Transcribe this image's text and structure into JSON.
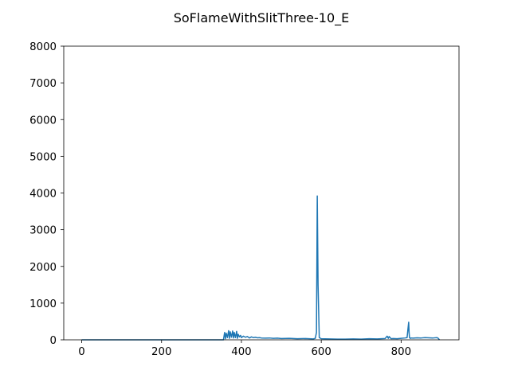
{
  "chart_data": {
    "type": "line",
    "title": "SoFlameWithSlitThree-10_E",
    "xlabel": "",
    "ylabel": "",
    "xlim": [
      -45,
      945
    ],
    "ylim": [
      0,
      8000
    ],
    "xticks": [
      0,
      200,
      400,
      600,
      800
    ],
    "xtick_labels": [
      "0",
      "200",
      "400",
      "600",
      "800"
    ],
    "yticks": [
      0,
      1000,
      2000,
      3000,
      4000,
      5000,
      6000,
      7000,
      8000
    ],
    "ytick_labels": [
      "0",
      "1000",
      "2000",
      "3000",
      "4000",
      "5000",
      "6000",
      "7000",
      "8000"
    ],
    "grid": false,
    "line_color": "#1f77b4",
    "series": [
      {
        "x": [
          0,
          100,
          200,
          300,
          355,
          358,
          360,
          362,
          365,
          368,
          370,
          372,
          375,
          378,
          380,
          382,
          385,
          388,
          390,
          392,
          395,
          398,
          400,
          405,
          410,
          415,
          420,
          425,
          430,
          435,
          440,
          445,
          450,
          460,
          470,
          480,
          490,
          500,
          520,
          540,
          560,
          580,
          585,
          588,
          590,
          592,
          595,
          600,
          620,
          640,
          660,
          680,
          700,
          720,
          740,
          760,
          765,
          768,
          770,
          775,
          780,
          790,
          800,
          810,
          815,
          817,
          819,
          820,
          821,
          823,
          825,
          830,
          840,
          850,
          860,
          870,
          880,
          890,
          893,
          896
        ],
        "y": [
          0,
          0,
          0,
          0,
          0,
          200,
          30,
          180,
          60,
          250,
          40,
          220,
          70,
          240,
          50,
          200,
          60,
          230,
          40,
          150,
          80,
          120,
          60,
          100,
          70,
          90,
          50,
          80,
          60,
          70,
          55,
          60,
          50,
          45,
          50,
          40,
          45,
          35,
          40,
          30,
          35,
          25,
          40,
          200,
          3920,
          1500,
          60,
          30,
          25,
          20,
          20,
          25,
          20,
          30,
          25,
          35,
          100,
          40,
          90,
          30,
          35,
          30,
          40,
          50,
          60,
          280,
          480,
          200,
          60,
          40,
          50,
          45,
          55,
          50,
          60,
          55,
          50,
          60,
          40,
          0
        ]
      }
    ]
  }
}
